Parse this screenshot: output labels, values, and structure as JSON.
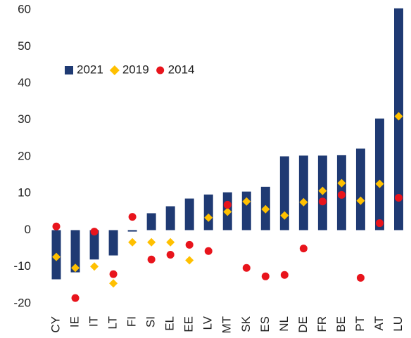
{
  "chart_data": {
    "type": "bar",
    "categories": [
      "CY",
      "IE",
      "IT",
      "LT",
      "FI",
      "SI",
      "EL",
      "EE",
      "LV",
      "MT",
      "SK",
      "ES",
      "NL",
      "DE",
      "FR",
      "BE",
      "PT",
      "AT",
      "LU"
    ],
    "series": [
      {
        "name": "2021",
        "type": "bar",
        "color": "#1f3a73",
        "values": [
          -13.4,
          -11.5,
          -8,
          -6.9,
          -0.4,
          4.6,
          6.5,
          8.6,
          9.7,
          10.3,
          10.5,
          11.8,
          20.1,
          20.3,
          20.3,
          20.4,
          22.2,
          30.4,
          60.4
        ]
      },
      {
        "name": "2019",
        "type": "scatter",
        "marker": "diamond",
        "color": "#ffc000",
        "values": [
          -7.3,
          -10.3,
          -9.9,
          -14.5,
          -3.3,
          -3.3,
          -3.3,
          -8.2,
          3.4,
          5.0,
          7.8,
          5.7,
          4.0,
          7.6,
          10.7,
          12.8,
          8.0,
          12.6,
          31.0
        ]
      },
      {
        "name": "2014",
        "type": "scatter",
        "marker": "circle",
        "color": "#e8141c",
        "values": [
          1.0,
          -18.5,
          -0.4,
          -12,
          3.6,
          -8,
          -6.7,
          -4.0,
          -5.7,
          6.9,
          -10.3,
          -12.6,
          -12.2,
          -5.0,
          7.8,
          9.6,
          -13,
          1.9,
          8.8
        ]
      }
    ],
    "ylim": [
      -21.5,
      61
    ],
    "yticks": [
      -20,
      -10,
      0,
      10,
      20,
      30,
      40,
      50,
      60
    ],
    "legend": "upper left"
  }
}
